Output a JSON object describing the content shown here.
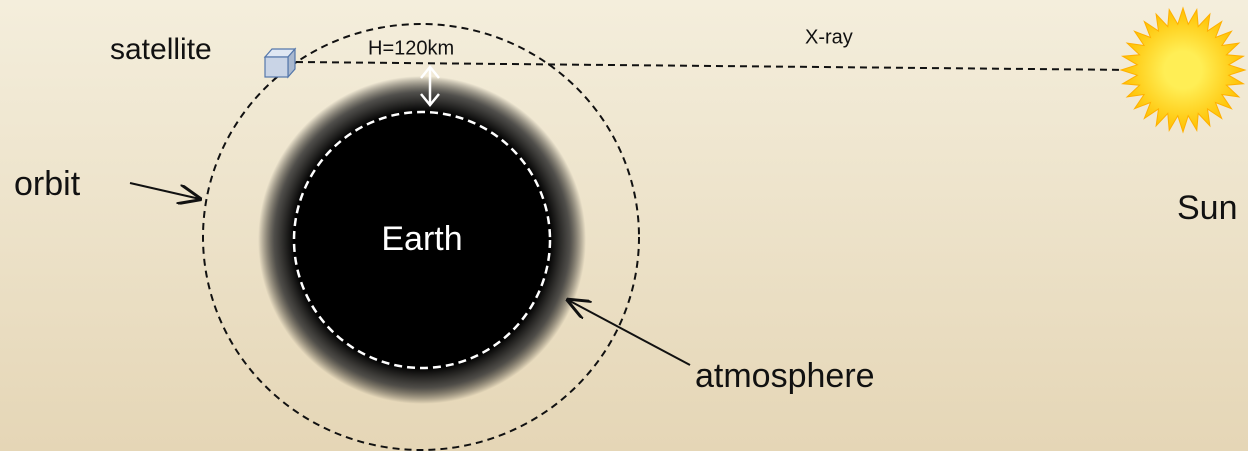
{
  "labels": {
    "satellite": "satellite",
    "height": "H=120km",
    "xray": "X-ray",
    "orbit": "orbit",
    "earth": "Earth",
    "sun": "Sun",
    "atmosphere": "atmosphere"
  }
}
